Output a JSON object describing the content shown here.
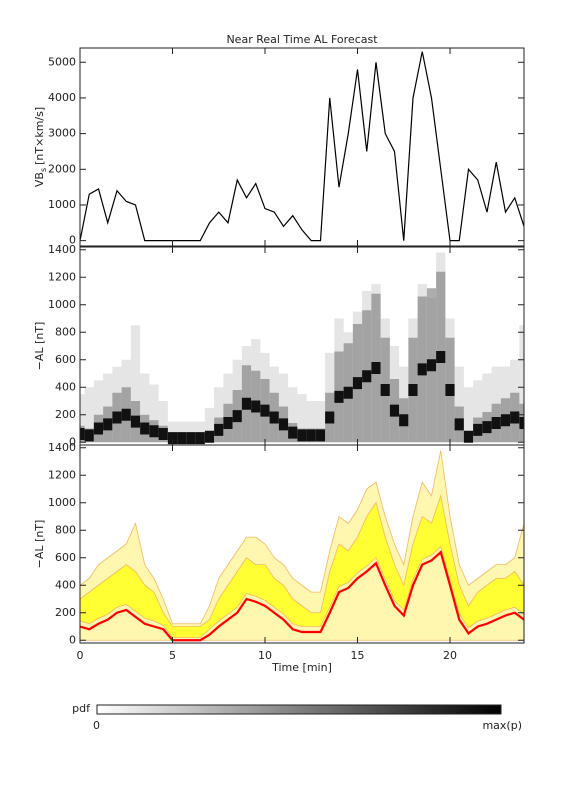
{
  "chart_data": {
    "type": "multi-panel",
    "title": "Near Real Time AL Forecast",
    "xlabel": "Time [min]",
    "xlim": [
      0,
      24
    ],
    "xticks": [
      0,
      5,
      10,
      15,
      20
    ],
    "x": [
      0,
      0.5,
      1,
      1.5,
      2,
      2.5,
      3,
      3.5,
      4,
      4.5,
      5,
      5.5,
      6,
      6.5,
      7,
      7.5,
      8,
      8.5,
      9,
      9.5,
      10,
      10.5,
      11,
      11.5,
      12,
      12.5,
      13,
      13.5,
      14,
      14.5,
      15,
      15.5,
      16,
      16.5,
      17,
      17.5,
      18,
      18.5,
      19,
      19.5,
      20,
      20.5,
      21,
      21.5,
      22,
      22.5,
      23,
      23.5,
      24
    ],
    "panels": [
      {
        "type": "line",
        "ylabel": "VB",
        "ylabel_sub": "s",
        "ylabel_unit": "[nT×km/s]",
        "ylim": [
          -150,
          5400
        ],
        "yticks": [
          0,
          1000,
          2000,
          3000,
          4000,
          5000
        ],
        "color": "#000000",
        "values": [
          0,
          1300,
          1450,
          500,
          1400,
          1100,
          1000,
          0,
          0,
          0,
          0,
          0,
          0,
          0,
          500,
          800,
          500,
          1700,
          1200,
          1600,
          900,
          800,
          400,
          700,
          300,
          0,
          0,
          4000,
          1500,
          3000,
          4800,
          2500,
          5000,
          3000,
          2500,
          0,
          4000,
          5300,
          4000,
          2000,
          0,
          0,
          2000,
          1700,
          800,
          2200,
          800,
          1200,
          400
        ]
      },
      {
        "type": "heatmap",
        "ylabel": "−AL [nT]",
        "ylim": [
          -20,
          1420
        ],
        "yticks": [
          0,
          200,
          400,
          600,
          800,
          1000,
          1200,
          1400
        ],
        "peak": [
          60,
          50,
          100,
          130,
          180,
          200,
          150,
          100,
          80,
          60,
          30,
          30,
          30,
          30,
          40,
          90,
          140,
          190,
          280,
          260,
          230,
          180,
          130,
          70,
          50,
          50,
          50,
          180,
          330,
          360,
          430,
          480,
          540,
          380,
          230,
          160,
          380,
          530,
          560,
          620,
          380,
          130,
          40,
          90,
          110,
          140,
          160,
          180,
          140
        ],
        "extent": [
          350,
          400,
          450,
          500,
          550,
          600,
          850,
          500,
          420,
          300,
          150,
          150,
          150,
          150,
          250,
          400,
          500,
          600,
          700,
          750,
          650,
          550,
          500,
          400,
          350,
          300,
          300,
          650,
          900,
          800,
          950,
          1100,
          1150,
          900,
          700,
          550,
          900,
          1150,
          1050,
          1380,
          900,
          550,
          400,
          450,
          500,
          550,
          550,
          600,
          850
        ]
      },
      {
        "type": "band",
        "ylabel": "−AL [nT]",
        "ylim": [
          -20,
          1420
        ],
        "yticks": [
          0,
          200,
          400,
          600,
          800,
          1000,
          1200,
          1400
        ],
        "outer_color": "#fff6b0",
        "outer_edge": "#f4b860",
        "band_color": "#ffff33",
        "median_color": "#ff0000",
        "outer_high": [
          400,
          450,
          550,
          600,
          650,
          700,
          850,
          550,
          450,
          300,
          120,
          120,
          120,
          120,
          250,
          450,
          550,
          650,
          750,
          750,
          700,
          600,
          550,
          450,
          400,
          350,
          350,
          650,
          900,
          850,
          950,
          1100,
          1150,
          900,
          700,
          550,
          900,
          1150,
          1050,
          1380,
          900,
          550,
          400,
          450,
          500,
          550,
          550,
          600,
          850
        ],
        "band_high": [
          300,
          350,
          400,
          450,
          500,
          550,
          500,
          400,
          350,
          200,
          100,
          100,
          100,
          100,
          150,
          300,
          400,
          500,
          600,
          550,
          550,
          450,
          400,
          300,
          250,
          200,
          200,
          500,
          700,
          650,
          750,
          900,
          1000,
          750,
          550,
          400,
          700,
          900,
          850,
          1050,
          700,
          400,
          250,
          350,
          400,
          450,
          450,
          500,
          400
        ],
        "band_low": [
          140,
          120,
          160,
          190,
          240,
          260,
          210,
          160,
          140,
          110,
          20,
          20,
          20,
          20,
          80,
          140,
          190,
          240,
          340,
          320,
          290,
          240,
          190,
          120,
          100,
          100,
          100,
          240,
          390,
          420,
          490,
          540,
          600,
          440,
          290,
          220,
          440,
          590,
          620,
          680,
          440,
          190,
          90,
          140,
          160,
          190,
          220,
          240,
          190
        ],
        "median": [
          100,
          80,
          120,
          150,
          200,
          220,
          170,
          120,
          100,
          80,
          0,
          0,
          0,
          0,
          40,
          100,
          150,
          200,
          300,
          280,
          250,
          200,
          150,
          80,
          60,
          60,
          60,
          200,
          350,
          380,
          450,
          500,
          560,
          400,
          250,
          180,
          400,
          550,
          580,
          640,
          400,
          150,
          50,
          100,
          120,
          150,
          180,
          200,
          150
        ]
      }
    ],
    "colorbar": {
      "label": "pdf",
      "min_label": "0",
      "max_label": "max(p)"
    }
  }
}
